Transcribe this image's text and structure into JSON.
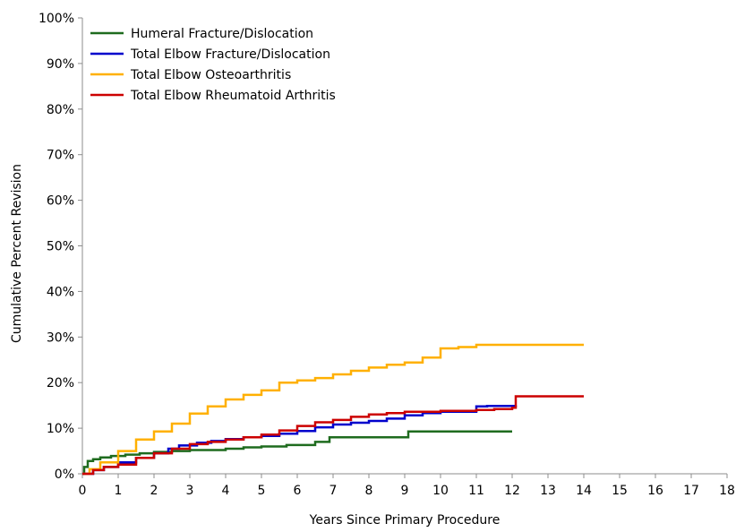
{
  "chart_data": {
    "type": "line",
    "step": true,
    "title": "",
    "xlabel": "Years Since Primary Procedure",
    "ylabel": "Cumulative Percent Revision",
    "xlim": [
      0,
      18
    ],
    "ylim": [
      0,
      100
    ],
    "xticks": [
      "0",
      "1",
      "2",
      "3",
      "4",
      "5",
      "6",
      "7",
      "8",
      "9",
      "10",
      "11",
      "12",
      "13",
      "14",
      "15",
      "16",
      "17",
      "18"
    ],
    "yticks": [
      "0%",
      "10%",
      "20%",
      "30%",
      "40%",
      "50%",
      "60%",
      "70%",
      "80%",
      "90%",
      "100%"
    ],
    "grid": false,
    "legend_position": "top-left",
    "series": [
      {
        "name": "Humeral Fracture/Dislocation",
        "color": "#1e6b1e",
        "x": [
          0,
          0.05,
          0.15,
          0.3,
          0.5,
          0.8,
          1.2,
          1.6,
          2.0,
          2.5,
          3.0,
          3.5,
          4.0,
          4.5,
          5.0,
          5.7,
          6.5,
          6.9,
          9.1,
          12.0
        ],
        "y": [
          0,
          1.5,
          2.8,
          3.2,
          3.6,
          3.9,
          4.2,
          4.5,
          4.8,
          5.0,
          5.2,
          5.2,
          5.5,
          5.8,
          6.0,
          6.3,
          7.0,
          8.0,
          9.3,
          9.3
        ]
      },
      {
        "name": "Total Elbow Fracture/Dislocation",
        "color": "#0000cc",
        "x": [
          0,
          0.3,
          0.6,
          1.0,
          1.5,
          2.0,
          2.4,
          2.7,
          3.2,
          3.6,
          4.0,
          4.5,
          5.0,
          5.5,
          6.0,
          6.5,
          7.0,
          7.5,
          8.0,
          8.5,
          9.0,
          9.5,
          10.0,
          11.0,
          11.3,
          12.1
        ],
        "y": [
          0,
          0.8,
          1.5,
          2.5,
          3.5,
          4.5,
          5.5,
          6.2,
          6.8,
          7.2,
          7.6,
          8.0,
          8.3,
          8.8,
          9.4,
          10.2,
          10.8,
          11.2,
          11.6,
          12.1,
          12.8,
          13.3,
          13.6,
          14.8,
          14.9,
          15.0
        ]
      },
      {
        "name": "Total Elbow Osteoarthritis",
        "color": "#ffb000",
        "x": [
          0,
          0.2,
          0.5,
          1.0,
          1.5,
          2.0,
          2.5,
          3.0,
          3.5,
          4.0,
          4.5,
          5.0,
          5.5,
          6.0,
          6.5,
          7.0,
          7.5,
          8.0,
          8.5,
          9.0,
          9.5,
          10.0,
          10.5,
          11.0,
          12.0,
          13.0,
          14.0
        ],
        "y": [
          0,
          1.0,
          2.5,
          5.0,
          7.5,
          9.3,
          11.0,
          13.2,
          14.8,
          16.3,
          17.3,
          18.3,
          20.0,
          20.5,
          21.0,
          21.8,
          22.6,
          23.3,
          23.9,
          24.4,
          25.5,
          27.5,
          27.8,
          28.3,
          28.3,
          28.3,
          28.3
        ]
      },
      {
        "name": "Total Elbow Rheumatoid Arthritis",
        "color": "#cc0000",
        "x": [
          0,
          0.3,
          0.6,
          1.0,
          1.5,
          2.0,
          2.5,
          3.0,
          3.5,
          4.0,
          4.5,
          5.0,
          5.5,
          6.0,
          6.5,
          7.0,
          7.5,
          8.0,
          8.5,
          9.0,
          10.0,
          11.0,
          11.5,
          12.0,
          12.1,
          14.0
        ],
        "y": [
          0,
          0.8,
          1.5,
          2.0,
          3.5,
          4.5,
          5.5,
          6.5,
          7.0,
          7.5,
          8.0,
          8.6,
          9.5,
          10.5,
          11.3,
          11.8,
          12.5,
          13.0,
          13.3,
          13.6,
          13.8,
          14.0,
          14.2,
          14.5,
          17.0,
          17.0
        ]
      }
    ]
  }
}
